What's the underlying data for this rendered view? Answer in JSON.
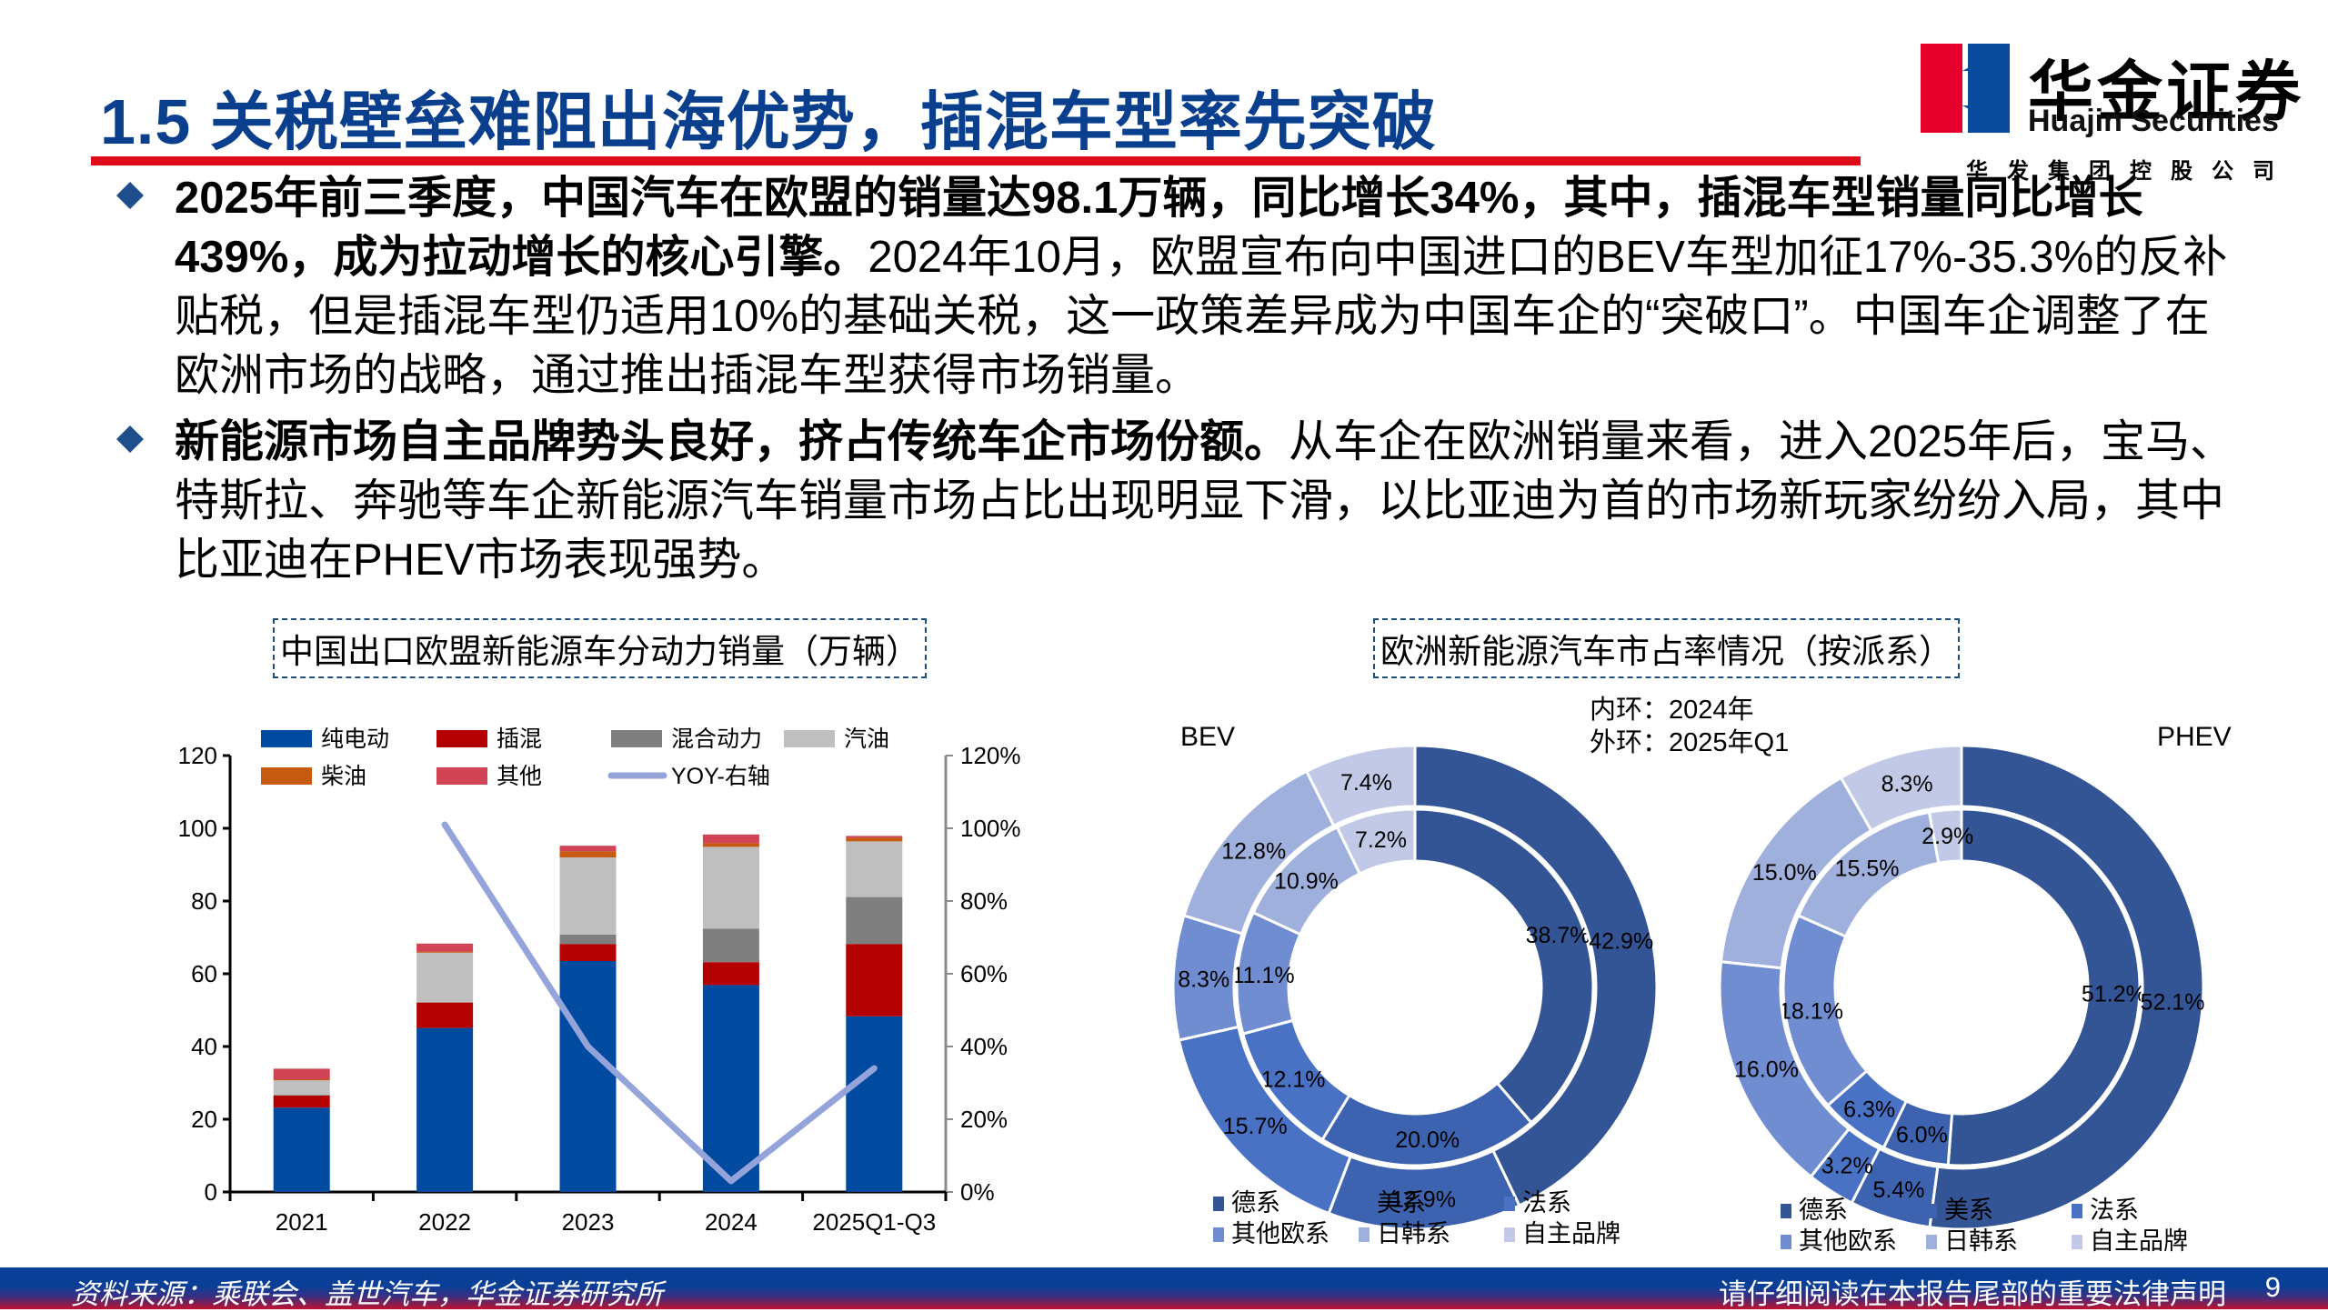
{
  "header": {
    "title": "1.5 关税壁垒难阻出海优势，插混车型率先突破",
    "logo": {
      "name_cn": "华金证券",
      "name_en": "Huajin Securities",
      "parent": "华发集团控股公司",
      "colors": {
        "red": "#e4002b",
        "blue": "#0a4a9c"
      }
    }
  },
  "bullets": [
    {
      "bold": "2025年前三季度，中国汽车在欧盟的销量达98.1万辆，同比增长34%，其中，插混车型销量同比增长439%，成为拉动增长的核心引擎。",
      "text": "2024年10月，欧盟宣布向中国进口的BEV车型加征17%-35.3%的反补贴税，但是插混车型仍适用10%的基础关税，这一政策差异成为中国车企的“突破口”。中国车企调整了在欧洲市场的战略，通过推出插混车型获得市场销量。"
    },
    {
      "bold": "新能源市场自主品牌势头良好，挤占传统车企市场份额。",
      "text": "从车企在欧洲销量来看，进入2025年后，宝马、特斯拉、奔驰等车企新能源汽车销量市场占比出现明显下滑，以比亚迪为首的市场新玩家纷纷入局，其中比亚迪在PHEV市场表现强势。"
    }
  ],
  "chart_data": [
    {
      "type": "bar",
      "stacked": true,
      "title": "中国出口欧盟新能源车分动力销量（万辆）",
      "categories": [
        "2021",
        "2022",
        "2023",
        "2024",
        "2025Q1-Q3"
      ],
      "ylabel": "万辆",
      "ylim": [
        0,
        120
      ],
      "yticks": [
        "0",
        "20",
        "40",
        "60",
        "80",
        "100",
        "120"
      ],
      "y2lim": [
        0,
        1.2
      ],
      "y2ticks": [
        "0%",
        "20%",
        "40%",
        "60%",
        "80%",
        "100%",
        "120%"
      ],
      "legend_position": "top",
      "series": [
        {
          "name": "纯电动",
          "color": "#004a9f",
          "values": [
            23.2,
            45.1,
            63.5,
            56.9,
            48.3
          ]
        },
        {
          "name": "插混",
          "color": "#b30000",
          "values": [
            3.3,
            7.0,
            4.7,
            6.3,
            19.9
          ]
        },
        {
          "name": "混合动力",
          "color": "#7f7f7f",
          "values": [
            0.2,
            0.0,
            2.6,
            9.2,
            12.9
          ]
        },
        {
          "name": "汽油",
          "color": "#bfbfbf",
          "values": [
            4.0,
            13.7,
            21.2,
            22.5,
            15.3
          ]
        },
        {
          "name": "柴油",
          "color": "#c55a11",
          "values": [
            0.3,
            0.3,
            1.7,
            1.0,
            1.0
          ]
        },
        {
          "name": "其他",
          "color": "#d04455",
          "values": [
            2.9,
            2.2,
            1.5,
            2.4,
            0.5
          ]
        },
        {
          "name": "YOY-右轴",
          "type": "line",
          "axis": "right",
          "color": "#94a3da",
          "values": [
            null,
            1.01,
            0.4,
            0.03,
            0.34
          ]
        }
      ]
    },
    {
      "type": "pie",
      "subtype": "donut",
      "title": "欧洲新能源汽车市占率情况（按派系）",
      "label": "BEV",
      "note": [
        "内环：2024年",
        "外环：2025年Q1"
      ],
      "categories": [
        "德系",
        "美系",
        "法系",
        "其他欧系",
        "日韩系",
        "自主品牌"
      ],
      "colors": [
        "#345595",
        "#3d63b0",
        "#4a72c4",
        "#6f8dd0",
        "#9fb0dc",
        "#c2c9e6"
      ],
      "series": [
        {
          "name": "内环：2024年",
          "values": [
            38.7,
            20.0,
            12.1,
            11.1,
            10.9,
            7.2
          ]
        },
        {
          "name": "外环：2025年Q1",
          "values": [
            42.9,
            12.9,
            15.7,
            8.3,
            12.8,
            7.4
          ]
        }
      ]
    },
    {
      "type": "pie",
      "subtype": "donut",
      "label": "PHEV",
      "categories": [
        "德系",
        "美系",
        "法系",
        "其他欧系",
        "日韩系",
        "自主品牌"
      ],
      "colors": [
        "#345595",
        "#3d63b0",
        "#4a72c4",
        "#6f8dd0",
        "#9fb0dc",
        "#c2c9e6"
      ],
      "series": [
        {
          "name": "内环：2024年",
          "values": [
            51.2,
            6.0,
            6.3,
            18.1,
            15.5,
            2.9
          ]
        },
        {
          "name": "外环：2025年Q1",
          "values": [
            52.1,
            5.4,
            3.2,
            16.0,
            15.0,
            8.3
          ]
        }
      ]
    }
  ],
  "footer": {
    "source": "资料来源：乘联会、盖世汽车，华金证券研究所",
    "disclaimer": "请仔细阅读在本报告尾部的重要法律声明",
    "page": "9"
  }
}
